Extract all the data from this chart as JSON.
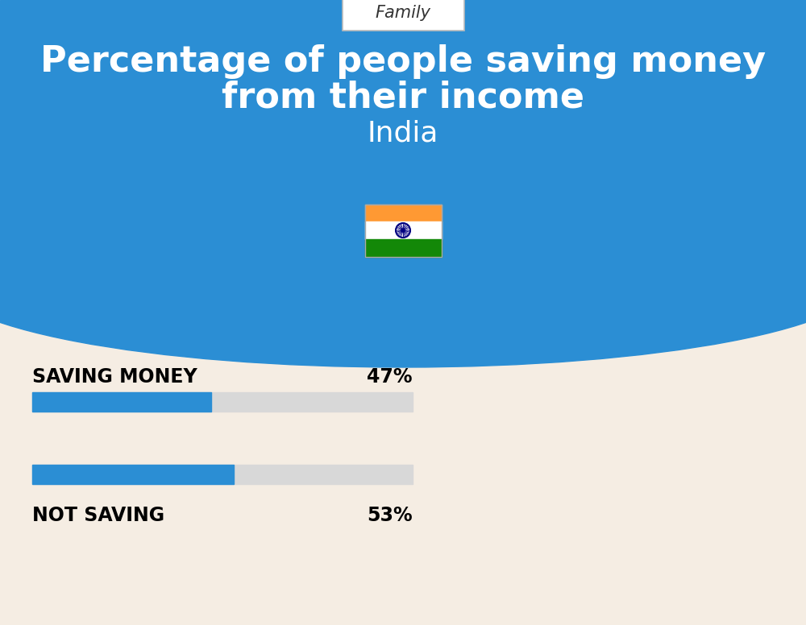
{
  "title_line1": "Percentage of people saving money",
  "title_line2": "from their income",
  "subtitle": "India",
  "tag_label": "Family",
  "bg_top_color": "#2B8ED4",
  "bg_bottom_color": "#F5EDE3",
  "bar_blue": "#2B8ED4",
  "bar_gray": "#D8D8D8",
  "saving_label": "SAVING MONEY",
  "saving_value": 47,
  "saving_pct_text": "47%",
  "not_saving_label": "NOT SAVING",
  "not_saving_value": 53,
  "not_saving_pct_text": "53%",
  "label_fontsize": 17,
  "pct_fontsize": 17,
  "title_fontsize": 32,
  "subtitle_fontsize": 26,
  "tag_fontsize": 15,
  "fig_w": 10.0,
  "fig_h": 7.76,
  "dpi": 100
}
